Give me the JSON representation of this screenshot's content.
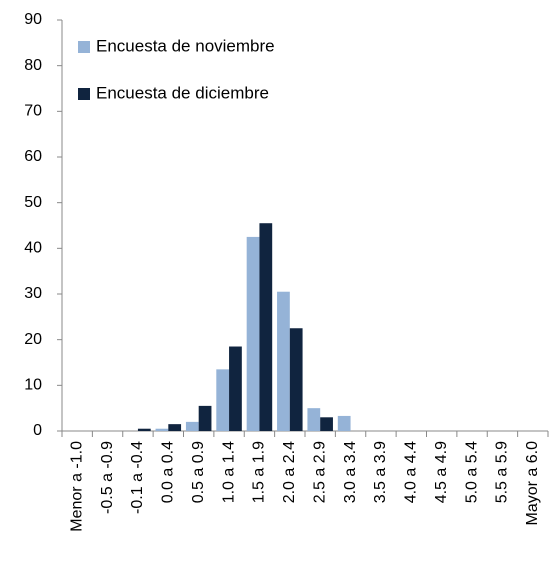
{
  "chart_data": {
    "type": "bar",
    "categories": [
      "Menor a -1.0",
      "-0.5 a -0.9",
      "-0.1 a -0.4",
      "0.0 a 0.4",
      "0.5 a 0.9",
      "1.0 a 1.4",
      "1.5 a 1.9",
      "2.0 a 2.4",
      "2.5 a 2.9",
      "3.0 a 3.4",
      "3.5 a 3.9",
      "4.0 a 4.4",
      "4.5 a 4.9",
      "5.0 a 5.4",
      "5.5 a 5.9",
      "Mayor a 6.0"
    ],
    "series": [
      {
        "name": "Encuesta de noviembre",
        "color": "#95b3d7",
        "values": [
          0,
          0,
          0,
          0.5,
          2,
          13.5,
          42.5,
          30.5,
          5,
          3.3,
          0,
          0,
          0,
          0,
          0,
          0
        ]
      },
      {
        "name": "Encuesta de diciembre",
        "color": "#10243f",
        "values": [
          0,
          0,
          0.5,
          1.5,
          5.5,
          18.5,
          45.5,
          22.5,
          3,
          0,
          0,
          0,
          0,
          0,
          0,
          0
        ]
      }
    ],
    "ylim": [
      0,
      90
    ],
    "yticks": [
      0,
      10,
      20,
      30,
      40,
      50,
      60,
      70,
      80,
      90
    ],
    "grid": false,
    "legend": "top-left"
  }
}
